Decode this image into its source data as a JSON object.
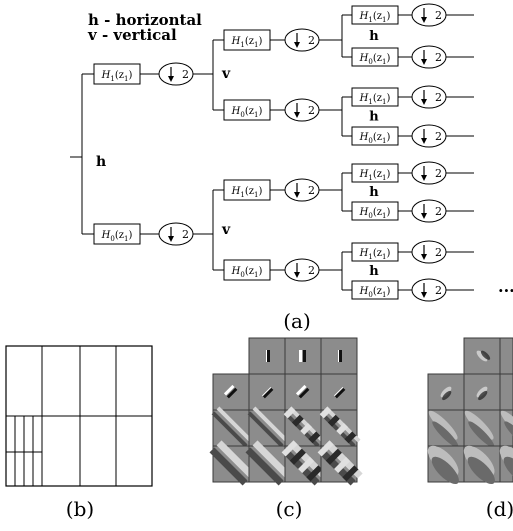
{
  "legend": {
    "horizontal": "h - horizontal",
    "vertical": "v - vertical"
  },
  "branch_labels": {
    "h": "h",
    "v": "v"
  },
  "filters": {
    "H1": "H",
    "H0": "H",
    "H1_sub": "1",
    "H0_sub": "0",
    "arg": "(z",
    "arg_sub": "1",
    "arg_close": ")"
  },
  "downsample": {
    "factor": "2"
  },
  "continuation": "...",
  "captions": {
    "a": "(a)",
    "b": "(b)",
    "c": "(c)",
    "d": "(d)"
  },
  "colors": {
    "stroke": "#000000",
    "tile_background": "#8c8c8c",
    "tile_border": "#3a3a3a"
  }
}
